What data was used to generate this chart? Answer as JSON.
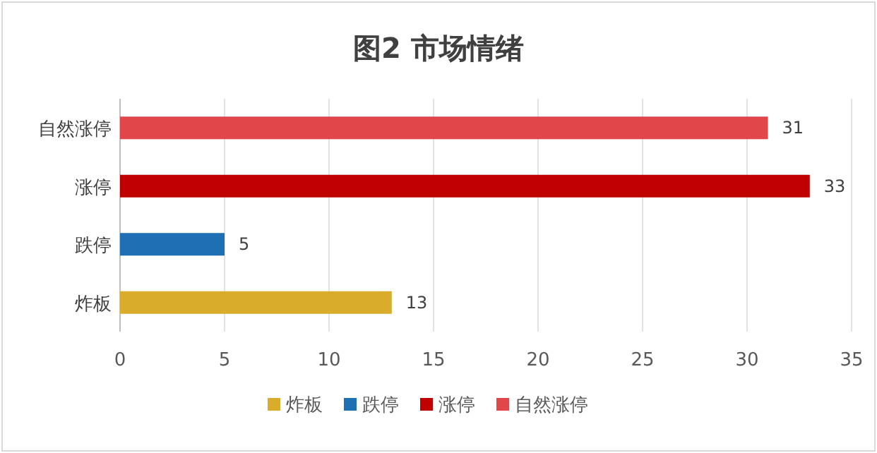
{
  "chart_data": {
    "type": "bar",
    "orientation": "horizontal",
    "title": "图2  市场情绪",
    "categories": [
      "自然涨停",
      "涨停",
      "跌停",
      "炸板"
    ],
    "series": [
      {
        "name": "炸板",
        "color": "#d9ac2c",
        "values": [
          null,
          null,
          null,
          13
        ]
      },
      {
        "name": "跌停",
        "color": "#1f6fb5",
        "values": [
          null,
          null,
          5,
          null
        ]
      },
      {
        "name": "涨停",
        "color": "#c00000",
        "values": [
          null,
          33,
          null,
          null
        ]
      },
      {
        "name": "自然涨停",
        "color": "#e0464a",
        "values": [
          31,
          null,
          null,
          null
        ]
      }
    ],
    "xlim": [
      0,
      35
    ],
    "xticks": [
      0,
      5,
      10,
      15,
      20,
      25,
      30,
      35
    ],
    "grid": "x",
    "data_labels": true,
    "legend": "bottom"
  }
}
